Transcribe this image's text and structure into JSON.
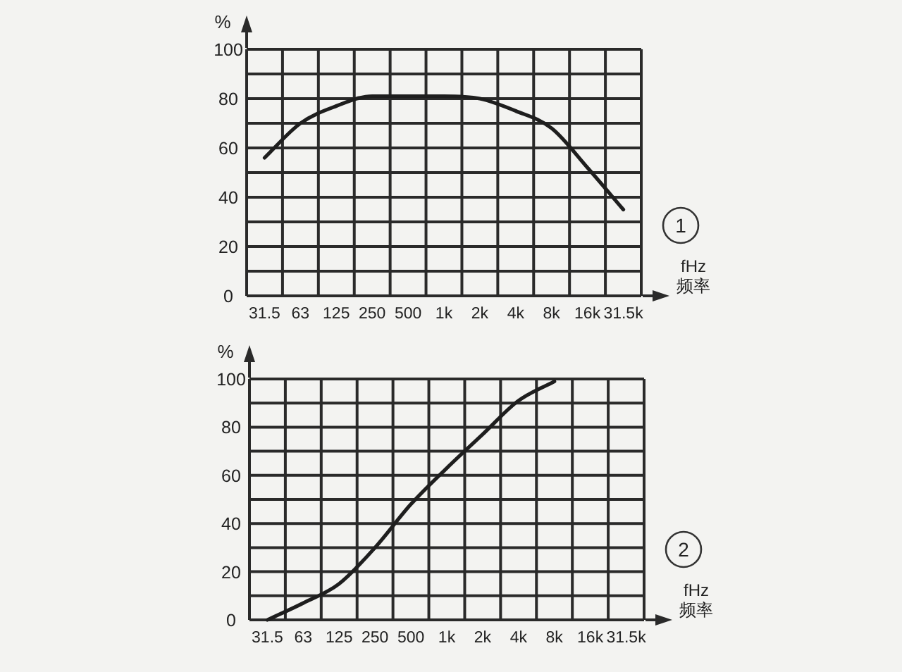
{
  "chart_data": [
    {
      "type": "line",
      "ylabel": "%",
      "xlabel": "fHz 频率",
      "categories": [
        "31.5",
        "63",
        "125",
        "250",
        "500",
        "1k",
        "2k",
        "4k",
        "8k",
        "16k",
        "31.5k"
      ],
      "series": [
        {
          "color": "#1e1e1e",
          "values": [
            56,
            70,
            77,
            81,
            81,
            81,
            80,
            75,
            68,
            52,
            35
          ]
        }
      ],
      "ylim": [
        0,
        100
      ],
      "yticks": [
        0,
        {
          "value": 10,
          "label": null
        },
        20,
        {
          "value": 30,
          "label": null
        },
        40,
        {
          "value": 50,
          "label": null
        },
        60,
        {
          "value": 70,
          "label": null
        },
        80,
        {
          "value": 90,
          "label": null
        },
        100
      ],
      "grid": true,
      "annotations": [
        "1"
      ]
    },
    {
      "type": "line",
      "ylabel": "%",
      "xlabel": "fHz 频率",
      "categories": [
        "31.5",
        "63",
        "125",
        "250",
        "500",
        "1k",
        "2k",
        "4k",
        "8k",
        "16k",
        "31.5k"
      ],
      "series": [
        {
          "color": "#1e1e1e",
          "values": [
            0,
            7,
            15,
            30,
            48,
            63,
            77,
            91,
            99,
            null,
            null
          ]
        }
      ],
      "ylim": [
        0,
        100
      ],
      "yticks": [
        0,
        {
          "value": 10,
          "label": null
        },
        20,
        {
          "value": 30,
          "label": null
        },
        40,
        {
          "value": 50,
          "label": null
        },
        60,
        {
          "value": 70,
          "label": null
        },
        80,
        {
          "value": 90,
          "label": null
        },
        100
      ],
      "grid": true,
      "annotations": [
        "2"
      ]
    }
  ]
}
